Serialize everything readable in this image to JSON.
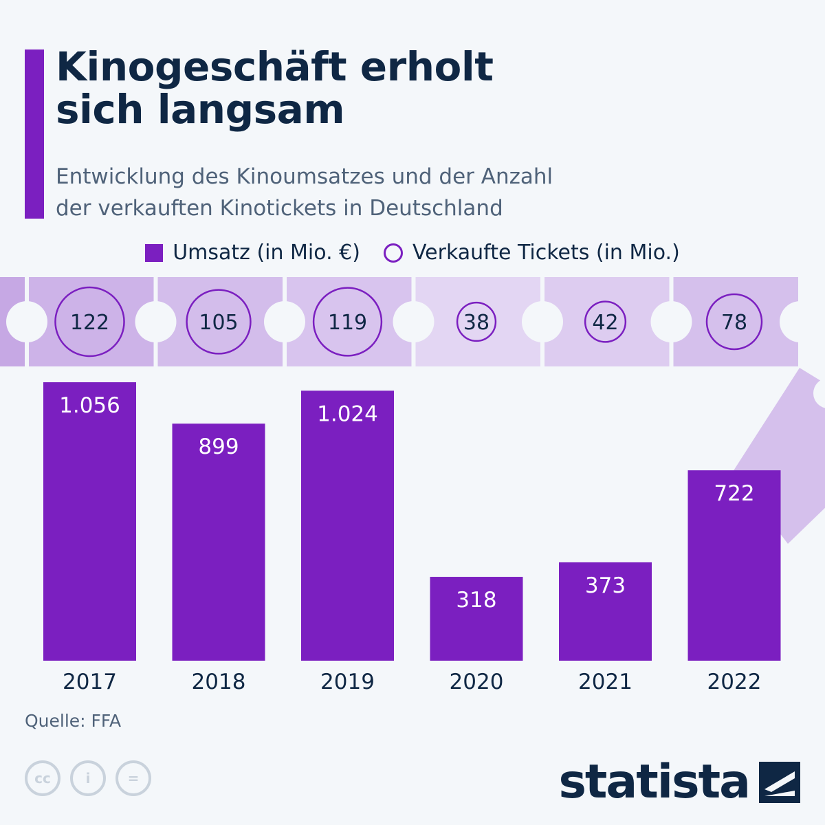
{
  "header": {
    "title_line1": "Kinogeschäft erholt",
    "title_line2": "sich langsam",
    "subtitle_line1": "Entwicklung des Kinoumsatzes und der Anzahl",
    "subtitle_line2": "der verkauften Kinotickets in Deutschland"
  },
  "colors": {
    "accent": "#7b1fc0",
    "ticket": "#d5c0ec",
    "text": "#0f2744"
  },
  "chart_data": {
    "type": "bar",
    "categories": [
      "2017",
      "2018",
      "2019",
      "2020",
      "2021",
      "2022"
    ],
    "series": [
      {
        "name": "Umsatz (in Mio. €)",
        "type": "bar",
        "values": [
          1056,
          899,
          1024,
          318,
          373,
          722
        ],
        "labels": [
          "1.056",
          "899",
          "1.024",
          "318",
          "373",
          "722"
        ]
      },
      {
        "name": "Verkaufte Tickets (in Mio.)",
        "type": "bubble",
        "values": [
          122,
          105,
          119,
          38,
          42,
          78
        ]
      }
    ],
    "legend": "top-center",
    "grid": false
  },
  "footer": {
    "source": "Quelle: FFA",
    "brand": "statista",
    "license_icons": [
      "cc-icon",
      "by-icon",
      "nd-icon"
    ]
  }
}
